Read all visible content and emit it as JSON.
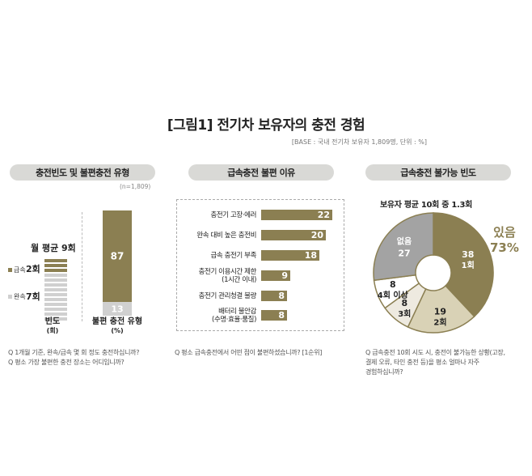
{
  "title": "[그림1] 전기차 보유자의 충전 경험",
  "base": "[BASE : 국내 전기차 보유자 1,809명, 단위 : %]",
  "panel1": {
    "header": "충전빈도 및 불편충전 유형",
    "n": "(n=1,809)",
    "monthly_avg": "월 평균 9회",
    "fast_label": "급속",
    "fast_value": "2회",
    "slow_label": "완속",
    "slow_value": "7회",
    "freq_label_1": "빈도",
    "freq_label_2": "(회)",
    "type_label_1": "불편 충전 유형",
    "type_label_2": "(%)",
    "q1": "Q 1개월 기준, 완속/급속 몇 회 정도 충전하십니까?",
    "q2": "Q 평소 가장 불편한 충전 장소는 어디입니까?"
  },
  "panel2": {
    "header": "급속충전 불편 이유",
    "q": "Q 평소 급속충전에서 어떤 점이 불편하셨습니까? [1순위]"
  },
  "panel3": {
    "header": "급속충전 불가능 빈도",
    "subtitle": "보유자 평균 10회 중 1.3회",
    "yes_label": "있음",
    "yes_value": "73%",
    "q1": "Q 급속충전 10회 시도 시, 충전이 불가능한 상황(고장,",
    "q2": "결제 오류, 타인 충전 등)을 평소 얼마나 자주",
    "q3": "경험하십니까?"
  },
  "chart_data": [
    {
      "type": "bar",
      "stacked": true,
      "title": "충전빈도",
      "categories": [
        "빈도 (회)"
      ],
      "series": [
        {
          "name": "급속",
          "values": [
            2
          ]
        },
        {
          "name": "완속",
          "values": [
            7
          ]
        }
      ],
      "total_label": "월 평균 9회"
    },
    {
      "type": "bar",
      "stacked": true,
      "title": "불편 충전 유형",
      "categories": [
        "불편 충전 유형 (%)"
      ],
      "series": [
        {
          "values": [
            87
          ]
        },
        {
          "values": [
            13
          ]
        }
      ],
      "ylim": [
        0,
        100
      ]
    },
    {
      "type": "bar",
      "orientation": "horizontal",
      "title": "급속충전 불편 이유",
      "categories": [
        [
          "충전기 고장·에러"
        ],
        [
          "완속 대비  높은 충전비"
        ],
        [
          "급속 충전기 부족"
        ],
        [
          "충전기 이용시간 제한",
          "(1시간 이내)"
        ],
        [
          "충전기 관리청결 불량"
        ],
        [
          "배터리 불안감",
          "(수명·효율·품질)"
        ]
      ],
      "values": [
        22,
        20,
        18,
        9,
        8,
        8
      ],
      "color": "#8b7f52",
      "xlim": [
        0,
        24
      ]
    },
    {
      "type": "pie",
      "donut": true,
      "title": "급속충전 불가능 빈도",
      "slices": [
        {
          "label": "1회",
          "value": 38,
          "color": "#8b7f52"
        },
        {
          "label": "2회",
          "value": 19,
          "color": "#d9d2b6"
        },
        {
          "label": "3회",
          "value": 8,
          "color": "#eeeae0"
        },
        {
          "label": "4회 이상",
          "value": 8,
          "color": "#ffffff"
        },
        {
          "label": "없음",
          "value": 27,
          "color": "#a3a3a3"
        }
      ]
    }
  ]
}
